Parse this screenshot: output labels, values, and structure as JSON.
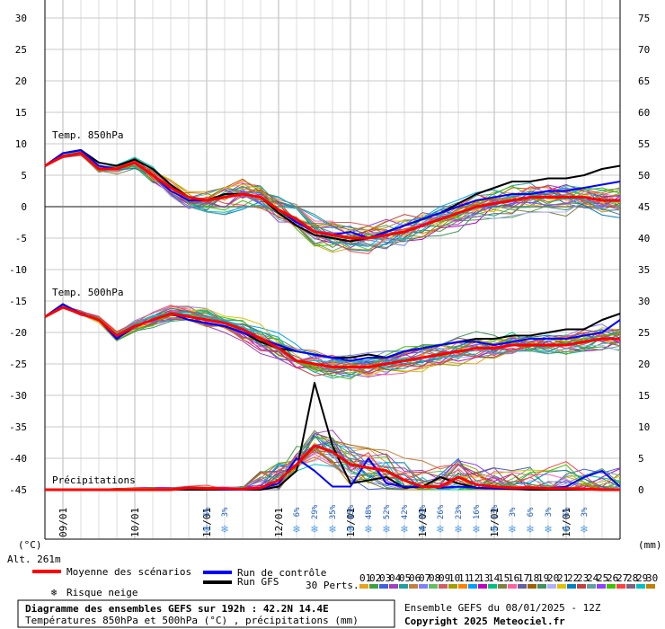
{
  "chart_data": {
    "type": "line",
    "title": "Diagramme des ensembles GEFS sur 192h : 42.2N 14.4E",
    "subtitle": "Températures 850hPa et 500hPa (°C) , précipitations (mm)",
    "run_info": "Ensemble GEFS du 08/01/2025 - 12Z",
    "copyright": "Copyright 2025 Meteociel.fr",
    "altitude": "Alt. 261m",
    "left_unit": "(°C)",
    "right_unit": "(mm)",
    "y_left_ticks": [
      30,
      25,
      20,
      15,
      10,
      5,
      0,
      -5,
      -10,
      -15,
      -20,
      -25,
      -30,
      -35,
      -40,
      -45
    ],
    "y_right_ticks": [
      75,
      70,
      65,
      60,
      55,
      50,
      45,
      40,
      35,
      30,
      25,
      20,
      15,
      10,
      5,
      0
    ],
    "ylim_left": [
      -45,
      30
    ],
    "x_range_hours": [
      0,
      192
    ],
    "x_tick_labels": [
      "09/01",
      "10/01",
      "11/01",
      "12/01",
      "13/01",
      "14/01",
      "15/01",
      "16/01"
    ],
    "x_tick_hours": [
      6,
      30,
      54,
      78,
      102,
      126,
      150,
      174
    ],
    "panel_labels": {
      "t850": "Temp. 850hPa",
      "t500": "Temp. 500hPa",
      "precip": "Précipitations"
    },
    "legend": {
      "mean": "Moyenne des scénarios",
      "control": "Run de contrôle",
      "gfs": "Run GFS",
      "snow": "Risque neige",
      "perts": "30 Perts.",
      "perturbation_numbers": [
        "01",
        "02",
        "03",
        "04",
        "05",
        "06",
        "07",
        "08",
        "09",
        "10",
        "11",
        "12",
        "13",
        "14",
        "15",
        "16",
        "17",
        "18",
        "19",
        "20",
        "21",
        "22",
        "23",
        "24",
        "25",
        "26",
        "27",
        "28",
        "29",
        "30"
      ]
    },
    "snow_risk": [
      {
        "hour": 54,
        "pct": "6%"
      },
      {
        "hour": 60,
        "pct": "3%"
      },
      {
        "hour": 84,
        "pct": "6%"
      },
      {
        "hour": 90,
        "pct": "29%"
      },
      {
        "hour": 96,
        "pct": "35%"
      },
      {
        "hour": 102,
        "pct": "45%"
      },
      {
        "hour": 108,
        "pct": "48%"
      },
      {
        "hour": 114,
        "pct": "52%"
      },
      {
        "hour": 120,
        "pct": "42%"
      },
      {
        "hour": 126,
        "pct": "39%"
      },
      {
        "hour": 132,
        "pct": "26%"
      },
      {
        "hour": 138,
        "pct": "23%"
      },
      {
        "hour": 144,
        "pct": "16%"
      },
      {
        "hour": 150,
        "pct": "13%"
      },
      {
        "hour": 156,
        "pct": "3%"
      },
      {
        "hour": 162,
        "pct": "6%"
      },
      {
        "hour": 168,
        "pct": "3%"
      },
      {
        "hour": 174,
        "pct": "6%"
      },
      {
        "hour": 180,
        "pct": "3%"
      }
    ],
    "series_hours": [
      0,
      6,
      12,
      18,
      24,
      30,
      36,
      42,
      48,
      54,
      60,
      66,
      72,
      78,
      84,
      90,
      96,
      102,
      108,
      114,
      120,
      126,
      132,
      138,
      144,
      150,
      156,
      162,
      168,
      174,
      180,
      186,
      192
    ],
    "series": [
      {
        "name": "Moyenne des scénarios",
        "color": "#ff0000",
        "panel": "t850",
        "values": [
          6.5,
          8,
          8.5,
          6,
          6,
          7,
          5,
          3,
          1.5,
          1,
          1.5,
          2,
          1.5,
          -0.5,
          -2,
          -4,
          -4.5,
          -5,
          -5,
          -4.5,
          -4,
          -3,
          -2,
          -1,
          0,
          0.5,
          1,
          1.5,
          1.5,
          1.5,
          1.5,
          1,
          1
        ]
      },
      {
        "name": "Run de contrôle",
        "color": "#0000ff",
        "panel": "t850",
        "values": [
          6.5,
          8.5,
          9,
          6.5,
          6,
          7,
          5,
          2.5,
          1,
          1,
          1.5,
          2,
          1.5,
          -0.5,
          -2.5,
          -4,
          -4.5,
          -4,
          -5,
          -4,
          -3,
          -2,
          -1,
          0,
          1,
          1.5,
          2,
          2,
          2.5,
          2.5,
          3,
          3.5,
          4
        ]
      },
      {
        "name": "Run GFS",
        "color": "#000000",
        "panel": "t850",
        "values": [
          6.5,
          8.5,
          9,
          7,
          6.5,
          7.5,
          6,
          3.5,
          1.5,
          1,
          2,
          2,
          1.5,
          -1,
          -3,
          -4.5,
          -5,
          -5.5,
          -5,
          -4,
          -3,
          -2,
          -1,
          0.5,
          2,
          3,
          4,
          4,
          4.5,
          4.5,
          5,
          6,
          6.5
        ]
      },
      {
        "name": "Moyenne des scénarios",
        "color": "#ff0000",
        "panel": "t500",
        "values": [
          -17.5,
          -16,
          -17,
          -18,
          -20.5,
          -19,
          -18,
          -17,
          -17.5,
          -18,
          -18.5,
          -19.5,
          -21,
          -22.5,
          -24.5,
          -25,
          -25.5,
          -25.5,
          -25.5,
          -25,
          -24.5,
          -24,
          -23.5,
          -23,
          -22.5,
          -22.5,
          -22,
          -22,
          -22,
          -22,
          -21.5,
          -21,
          -21
        ]
      },
      {
        "name": "Run de contrôle",
        "color": "#0000ff",
        "panel": "t500",
        "values": [
          -17.5,
          -15.5,
          -17,
          -18,
          -21,
          -19,
          -18,
          -17,
          -18,
          -18.5,
          -19,
          -20,
          -21,
          -22,
          -23,
          -23.5,
          -24,
          -24.5,
          -24,
          -24,
          -23,
          -22.5,
          -22,
          -21.5,
          -21.5,
          -22,
          -21.5,
          -21,
          -21,
          -21,
          -20.5,
          -20,
          -18
        ]
      },
      {
        "name": "Run GFS",
        "color": "#000000",
        "panel": "t500",
        "values": [
          -17.5,
          -15.5,
          -17,
          -18,
          -21,
          -19,
          -18,
          -17,
          -18,
          -18.5,
          -19,
          -20,
          -21.5,
          -22.5,
          -23,
          -23.5,
          -24,
          -24,
          -23.5,
          -24,
          -23,
          -22.5,
          -22,
          -21.5,
          -21,
          -21,
          -20.5,
          -20.5,
          -20,
          -19.5,
          -19.5,
          -18,
          -17
        ]
      },
      {
        "name": "Moyenne des scénarios",
        "color": "#ff0000",
        "panel": "precip",
        "values": [
          0,
          0,
          0,
          0,
          0,
          0,
          0,
          0,
          0.3,
          0.2,
          0.2,
          0.1,
          0.3,
          1.5,
          4,
          7,
          6,
          4,
          3.5,
          3,
          1.5,
          0.5,
          0.5,
          2,
          0.8,
          0.5,
          0.3,
          0.3,
          0.2,
          0.2,
          0.1,
          0,
          0
        ]
      },
      {
        "name": "Run de contrôle",
        "color": "#0000ff",
        "panel": "precip",
        "values": [
          0,
          0,
          0,
          0,
          0,
          0,
          0,
          0,
          0.2,
          0.2,
          0,
          0,
          0.2,
          1,
          5,
          3,
          0.5,
          0.5,
          5,
          1,
          0.5,
          0.5,
          0.3,
          0.5,
          0.3,
          0.2,
          0.2,
          0.2,
          0.2,
          0.5,
          2,
          3,
          0.5
        ]
      },
      {
        "name": "Run GFS",
        "color": "#000000",
        "panel": "precip",
        "values": [
          0,
          0,
          0,
          0,
          0,
          0,
          0,
          0,
          0,
          0,
          0,
          0,
          0,
          0.5,
          3,
          17,
          7,
          1,
          1.5,
          2,
          0.3,
          0.5,
          2,
          1,
          0.3,
          0.2,
          0.1,
          0,
          0,
          0,
          0,
          0,
          0
        ]
      }
    ],
    "grid": true,
    "legend_position": "bottom"
  }
}
